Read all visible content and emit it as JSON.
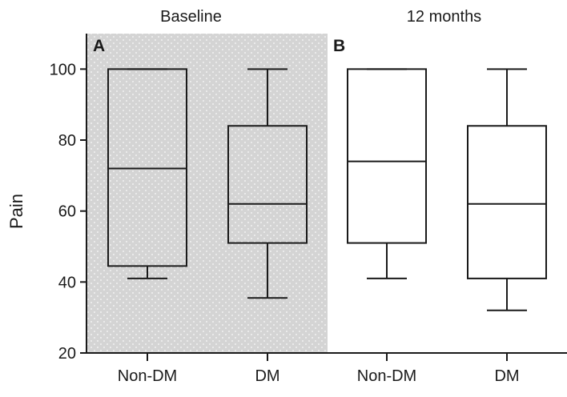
{
  "chart_data": {
    "type": "box",
    "ylabel": "Pain",
    "ylim": [
      20,
      110
    ],
    "yticks": [
      20,
      40,
      60,
      80,
      100
    ],
    "grid": false,
    "shaded_panel_color": "#d4d4d4",
    "panels": [
      {
        "letter": "A",
        "title": "Baseline",
        "shaded": true,
        "groups": [
          {
            "label": "Non-DM",
            "min": 41,
            "q1": 44.5,
            "median": 72,
            "q3": 100,
            "max": 100
          },
          {
            "label": "DM",
            "min": 35.5,
            "q1": 51,
            "median": 62,
            "q3": 84,
            "max": 100
          }
        ]
      },
      {
        "letter": "B",
        "title": "12 months",
        "shaded": false,
        "groups": [
          {
            "label": "Non-DM",
            "min": 41,
            "q1": 51,
            "median": 74,
            "q3": 100,
            "max": 100
          },
          {
            "label": "DM",
            "min": 32,
            "q1": 41,
            "median": 62,
            "q3": 84,
            "max": 100
          }
        ]
      }
    ]
  }
}
